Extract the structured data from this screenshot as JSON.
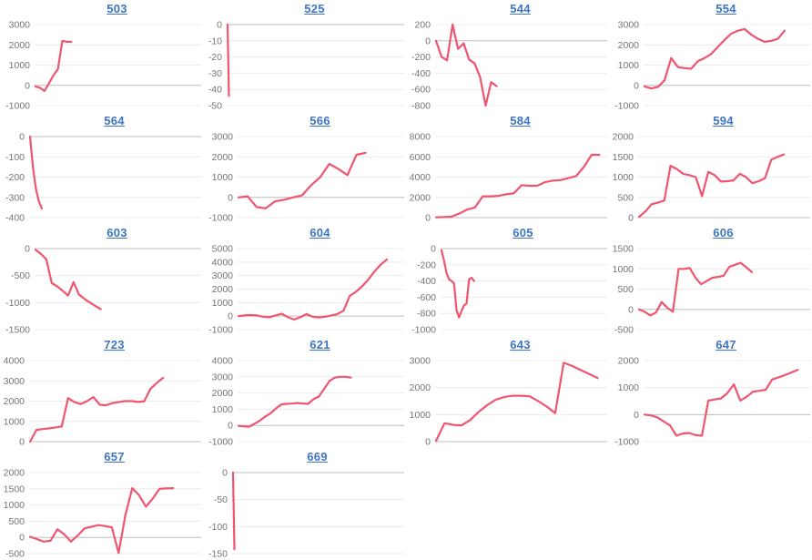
{
  "page": {
    "background": "#ffffff"
  },
  "style": {
    "line_color": "#f05570",
    "title_color": "#3d74c4",
    "grid_color": "#ececec",
    "zero_line_color": "#bdbdbd",
    "tick_color": "#757575"
  },
  "chart_data": [
    {
      "type": "line",
      "title": "503",
      "ymin": -1000,
      "ymax": 3000,
      "yticks": [
        3000,
        2000,
        1000,
        0,
        -1000
      ],
      "span": 0.22,
      "values": [
        -50,
        -120,
        -280,
        100,
        500,
        800,
        2200,
        2150,
        2150
      ]
    },
    {
      "type": "line",
      "title": "525",
      "ymin": -50,
      "ymax": 0,
      "yticks": [
        0,
        -10,
        -20,
        -30,
        -40,
        -50
      ],
      "span": 0.008,
      "values": [
        0,
        -44
      ]
    },
    {
      "type": "line",
      "title": "544",
      "ymin": -800,
      "ymax": 200,
      "yticks": [
        200,
        0,
        -200,
        -400,
        -600,
        -800
      ],
      "span": 0.36,
      "values": [
        0,
        -200,
        -240,
        200,
        -100,
        -30,
        -230,
        -280,
        -450,
        -800,
        -510,
        -560
      ]
    },
    {
      "type": "line",
      "title": "554",
      "ymin": -1000,
      "ymax": 3000,
      "yticks": [
        3000,
        2000,
        1000,
        0,
        -1000
      ],
      "span": 0.86,
      "values": [
        -50,
        -150,
        -80,
        250,
        1350,
        900,
        850,
        820,
        1200,
        1350,
        1550,
        1900,
        2250,
        2550,
        2700,
        2780,
        2500,
        2300,
        2150,
        2200,
        2300,
        2700
      ]
    },
    {
      "type": "line",
      "title": "564",
      "ymin": -400,
      "ymax": 0,
      "yticks": [
        0,
        -100,
        -200,
        -300,
        -400
      ],
      "span": 0.07,
      "values": [
        0,
        -150,
        -260,
        -320,
        -355
      ]
    },
    {
      "type": "line",
      "title": "566",
      "ymin": -1000,
      "ymax": 3000,
      "yticks": [
        3000,
        2000,
        1000,
        0,
        -1000
      ],
      "span": 0.78,
      "values": [
        0,
        50,
        -480,
        -540,
        -200,
        -120,
        0,
        100,
        600,
        1000,
        1650,
        1400,
        1100,
        2100,
        2200
      ]
    },
    {
      "type": "line",
      "title": "584",
      "ymin": 0,
      "ymax": 8000,
      "yticks": [
        8000,
        6000,
        4000,
        2000,
        0
      ],
      "span": 0.97,
      "values": [
        30,
        50,
        100,
        400,
        800,
        1000,
        2100,
        2100,
        2150,
        2300,
        2400,
        3200,
        3150,
        3150,
        3500,
        3650,
        3700,
        3900,
        4100,
        5000,
        6200,
        6200
      ]
    },
    {
      "type": "line",
      "title": "594",
      "ymin": 0,
      "ymax": 2000,
      "yticks": [
        2000,
        1500,
        1000,
        500,
        0
      ],
      "span": 0.86,
      "values": [
        20,
        150,
        330,
        370,
        420,
        1280,
        1200,
        1080,
        1050,
        1000,
        530,
        1130,
        1050,
        890,
        900,
        920,
        1080,
        1000,
        850,
        900,
        970,
        1430,
        1500,
        1560
      ]
    },
    {
      "type": "line",
      "title": "603",
      "ymin": -1500,
      "ymax": 0,
      "yticks": [
        0,
        -500,
        -1000,
        -1500
      ],
      "span": 0.4,
      "values": [
        -20,
        -100,
        -200,
        -640,
        -700,
        -780,
        -870,
        -620,
        -850,
        -930,
        -1000,
        -1060,
        -1120
      ]
    },
    {
      "type": "line",
      "title": "604",
      "ymin": -1000,
      "ymax": 5000,
      "yticks": [
        5000,
        4000,
        3000,
        2000,
        1000,
        0,
        -1000
      ],
      "span": 0.91,
      "values": [
        0,
        50,
        80,
        50,
        -50,
        -80,
        50,
        180,
        -80,
        -250,
        -80,
        150,
        -50,
        -100,
        -50,
        50,
        150,
        400,
        1500,
        1800,
        2200,
        2700,
        3300,
        3800,
        4200
      ]
    },
    {
      "type": "line",
      "title": "605",
      "ymin": -1000,
      "ymax": 0,
      "yticks": [
        0,
        -200,
        -400,
        -600,
        -800,
        -1000
      ],
      "span": 0.2,
      "values": [
        -20,
        -150,
        -300,
        -380,
        -400,
        -430,
        -760,
        -850,
        -770,
        -700,
        -680,
        -380,
        -360,
        -400
      ]
    },
    {
      "type": "line",
      "title": "606",
      "ymin": -500,
      "ymax": 1500,
      "yticks": [
        1500,
        1000,
        500,
        0,
        -500
      ],
      "span": 0.67,
      "values": [
        0,
        -60,
        -150,
        -80,
        180,
        40,
        -60,
        1000,
        1000,
        1020,
        780,
        620,
        700,
        780,
        800,
        830,
        1050,
        1100,
        1150,
        1040,
        920
      ]
    },
    {
      "type": "line",
      "title": "723",
      "ymin": 0,
      "ymax": 4000,
      "yticks": [
        4000,
        3000,
        2000,
        1000,
        0
      ],
      "span": 0.79,
      "values": [
        0,
        580,
        620,
        650,
        700,
        750,
        2150,
        1950,
        1850,
        2000,
        2200,
        1820,
        1800,
        1900,
        1950,
        2000,
        2000,
        1960,
        1980,
        2600,
        2900,
        3150
      ]
    },
    {
      "type": "line",
      "title": "621",
      "ymin": -1000,
      "ymax": 4000,
      "yticks": [
        4000,
        3000,
        2000,
        1000,
        0,
        -1000
      ],
      "span": 0.69,
      "values": [
        -30,
        -60,
        -80,
        100,
        300,
        550,
        750,
        1050,
        1300,
        1330,
        1350,
        1380,
        1350,
        1330,
        1620,
        1780,
        2250,
        2750,
        2950,
        3000,
        3000,
        2950
      ]
    },
    {
      "type": "line",
      "title": "643",
      "ymin": 0,
      "ymax": 3000,
      "yticks": [
        3000,
        2000,
        1000,
        0
      ],
      "span": 0.96,
      "values": [
        30,
        680,
        620,
        600,
        800,
        1100,
        1350,
        1550,
        1650,
        1700,
        1700,
        1680,
        1500,
        1300,
        1050,
        2920,
        2800,
        2650,
        2500,
        2350
      ]
    },
    {
      "type": "line",
      "title": "647",
      "ymin": -1000,
      "ymax": 2000,
      "yticks": [
        2000,
        1000,
        0,
        -1000
      ],
      "span": 0.94,
      "values": [
        0,
        -30,
        -100,
        -250,
        -400,
        -780,
        -700,
        -680,
        -760,
        -780,
        520,
        560,
        600,
        800,
        1120,
        520,
        660,
        850,
        880,
        920,
        1300,
        1380,
        1460,
        1560,
        1660
      ]
    },
    {
      "type": "line",
      "title": "657",
      "ymin": -500,
      "ymax": 2000,
      "yticks": [
        2000,
        1500,
        1000,
        500,
        0,
        -500
      ],
      "span": 0.85,
      "values": [
        20,
        -50,
        -130,
        -100,
        250,
        100,
        -130,
        60,
        280,
        330,
        380,
        350,
        310,
        -480,
        700,
        1520,
        1300,
        950,
        1200,
        1500,
        1510,
        1520
      ]
    },
    {
      "type": "line",
      "title": "669",
      "ymin": -150,
      "ymax": 0,
      "yticks": [
        0,
        -50,
        -100,
        -150
      ],
      "span": 0.008,
      "values": [
        0,
        -142
      ]
    }
  ]
}
